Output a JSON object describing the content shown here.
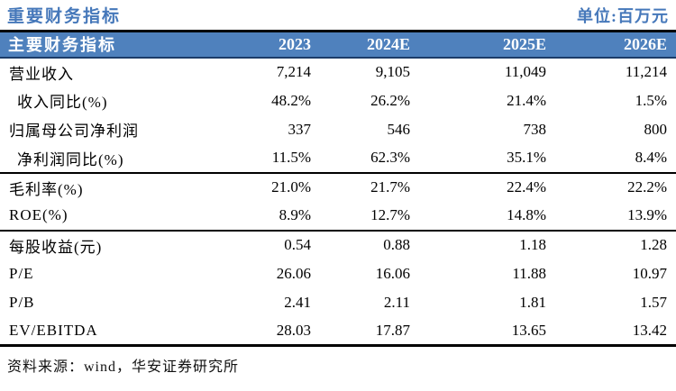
{
  "title": "重要财务指标",
  "unit_label": "单位:百万元",
  "colors": {
    "header_bg": "#4f81bd",
    "header_text": "#ffffff",
    "accent_blue": "#4678ba",
    "rule_color": "#000000"
  },
  "table": {
    "header": [
      "主要财务指标",
      "2023",
      "2024E",
      "2025E",
      "2026E"
    ],
    "groups": [
      {
        "rows": [
          {
            "label": "营业收入",
            "indent": false,
            "values": [
              "7,214",
              "9,105",
              "11,049",
              "11,214"
            ]
          },
          {
            "label": "收入同比(%)",
            "indent": true,
            "values": [
              "48.2%",
              "26.2%",
              "21.4%",
              "1.5%"
            ]
          },
          {
            "label": "归属母公司净利润",
            "indent": false,
            "values": [
              "337",
              "546",
              "738",
              "800"
            ]
          },
          {
            "label": "净利润同比(%)",
            "indent": true,
            "values": [
              "11.5%",
              "62.3%",
              "35.1%",
              "8.4%"
            ]
          }
        ]
      },
      {
        "rows": [
          {
            "label": "毛利率(%)",
            "indent": false,
            "values": [
              "21.0%",
              "21.7%",
              "22.4%",
              "22.2%"
            ]
          },
          {
            "label": "ROE(%)",
            "indent": false,
            "values": [
              "8.9%",
              "12.7%",
              "14.8%",
              "13.9%"
            ]
          }
        ]
      },
      {
        "rows": [
          {
            "label": "每股收益(元)",
            "indent": false,
            "values": [
              "0.54",
              "0.88",
              "1.18",
              "1.28"
            ]
          },
          {
            "label": "P/E",
            "indent": false,
            "values": [
              "26.06",
              "16.06",
              "11.88",
              "10.97"
            ]
          },
          {
            "label": "P/B",
            "indent": false,
            "values": [
              "2.41",
              "2.11",
              "1.81",
              "1.57"
            ]
          },
          {
            "label": "EV/EBITDA",
            "indent": false,
            "values": [
              "28.03",
              "17.87",
              "13.65",
              "13.42"
            ]
          }
        ]
      }
    ]
  },
  "footer": {
    "source_label": "资料来源：wind，华安证券研究所"
  }
}
